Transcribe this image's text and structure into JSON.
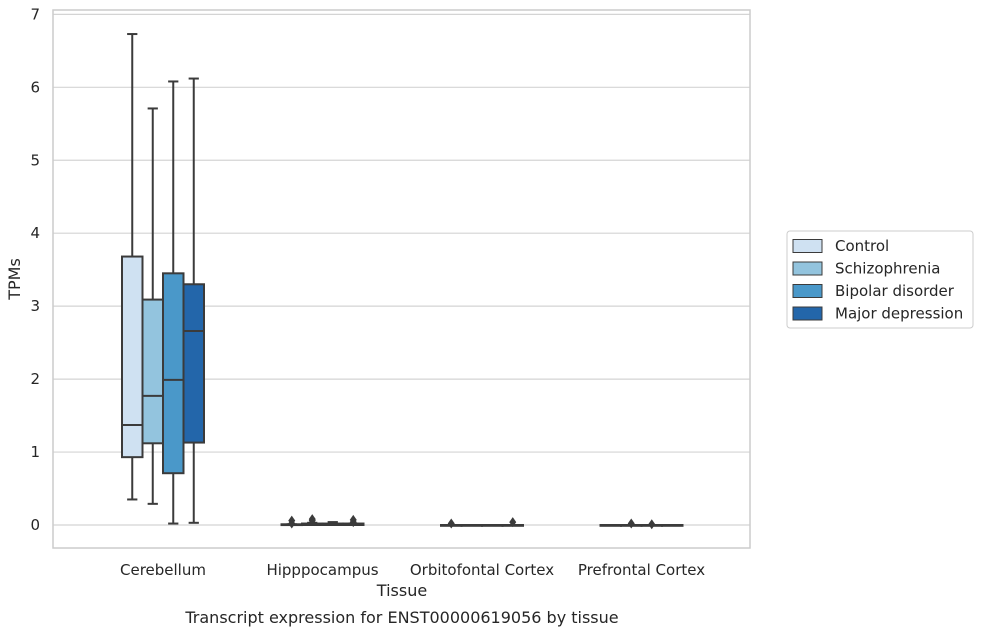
{
  "chart_data": {
    "type": "boxplot",
    "title": "",
    "caption": "Transcript expression for ENST00000619056 by tissue",
    "xlabel": "Tissue",
    "ylabel": "TPMs",
    "ylim": [
      -0.32,
      7.05
    ],
    "yticks": [
      0,
      1,
      2,
      3,
      4,
      5,
      6,
      7
    ],
    "grid": "horizontal",
    "legend_position": "right",
    "categories": [
      "Cerebellum",
      "Hipppocampus",
      "Orbitofontal Cortex",
      "Prefrontal Cortex"
    ],
    "series": [
      {
        "name": "Control",
        "color": "#cfe1f2",
        "boxes": [
          {
            "whislo": 0.35,
            "q1": 0.93,
            "med": 1.37,
            "q3": 3.68,
            "whishi": 6.73,
            "fliers": []
          },
          {
            "whislo": 0.0,
            "q1": 0.0,
            "med": 0.0,
            "q3": 0.01,
            "whishi": 0.01,
            "fliers": [
              0.02,
              0.06
            ]
          },
          {
            "whislo": 0.0,
            "q1": 0.0,
            "med": 0.0,
            "q3": 0.0,
            "whishi": 0.0,
            "fliers": [
              0.02
            ]
          },
          {
            "whislo": 0.0,
            "q1": 0.0,
            "med": 0.0,
            "q3": 0.0,
            "whishi": 0.0,
            "fliers": []
          }
        ]
      },
      {
        "name": "Schizophrenia",
        "color": "#93c4de",
        "boxes": [
          {
            "whislo": 0.29,
            "q1": 1.12,
            "med": 1.77,
            "q3": 3.09,
            "whishi": 5.71,
            "fliers": []
          },
          {
            "whislo": 0.0,
            "q1": 0.0,
            "med": 0.01,
            "q3": 0.02,
            "whishi": 0.03,
            "fliers": [
              0.06,
              0.08
            ]
          },
          {
            "whislo": 0.0,
            "q1": 0.0,
            "med": 0.0,
            "q3": 0.0,
            "whishi": 0.0,
            "fliers": []
          },
          {
            "whislo": 0.0,
            "q1": 0.0,
            "med": 0.0,
            "q3": 0.0,
            "whishi": 0.0,
            "fliers": [
              0.02
            ]
          }
        ]
      },
      {
        "name": "Bipolar disorder",
        "color": "#4a98c9",
        "boxes": [
          {
            "whislo": 0.02,
            "q1": 0.71,
            "med": 1.99,
            "q3": 3.45,
            "whishi": 6.08,
            "fliers": []
          },
          {
            "whislo": 0.0,
            "q1": 0.0,
            "med": 0.01,
            "q3": 0.02,
            "whishi": 0.04,
            "fliers": []
          },
          {
            "whislo": 0.0,
            "q1": 0.0,
            "med": 0.0,
            "q3": 0.0,
            "whishi": 0.0,
            "fliers": []
          },
          {
            "whislo": 0.0,
            "q1": 0.0,
            "med": 0.0,
            "q3": 0.0,
            "whishi": 0.0,
            "fliers": [
              0.01
            ]
          }
        ]
      },
      {
        "name": "Major depression",
        "color": "#2366aa",
        "boxes": [
          {
            "whislo": 0.03,
            "q1": 1.13,
            "med": 2.66,
            "q3": 3.3,
            "whishi": 6.12,
            "fliers": []
          },
          {
            "whislo": 0.0,
            "q1": 0.0,
            "med": 0.01,
            "q3": 0.02,
            "whishi": 0.02,
            "fliers": [
              0.04,
              0.07
            ]
          },
          {
            "whislo": 0.0,
            "q1": 0.0,
            "med": 0.0,
            "q3": 0.0,
            "whishi": 0.0,
            "fliers": [
              0.04
            ]
          },
          {
            "whislo": 0.0,
            "q1": 0.0,
            "med": 0.0,
            "q3": 0.0,
            "whishi": 0.0,
            "fliers": []
          }
        ]
      }
    ]
  }
}
